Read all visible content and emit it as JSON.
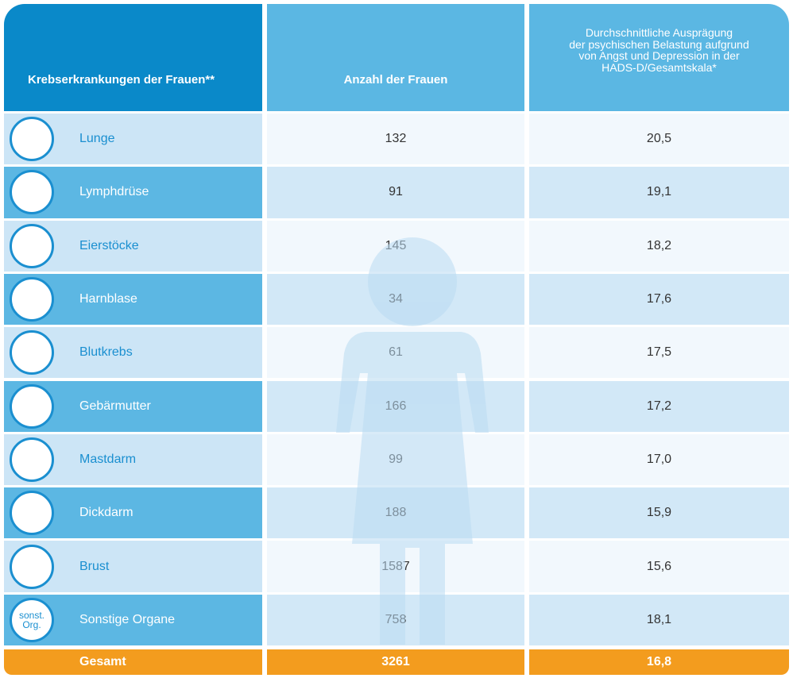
{
  "header": {
    "col1": "Krebserkrankungen der Frauen**",
    "col2": "Anzahl der Frauen",
    "col3": [
      "Durchschnittliche Ausprägung",
      "der psychischen Belastung aufgrund",
      "von Angst und Depression in der",
      "HADS-D/Gesamtskala*"
    ]
  },
  "rows": [
    {
      "label": "Lunge",
      "count": 132,
      "score": "20,5"
    },
    {
      "label": "Lymphdrüse",
      "count": 91,
      "score": "19,1"
    },
    {
      "label": "Eierstöcke",
      "count": 145,
      "score": "18,2"
    },
    {
      "label": "Harnblase",
      "count": 34,
      "score": "17,6"
    },
    {
      "label": "Blutkrebs",
      "count": 61,
      "score": "17,5"
    },
    {
      "label": "Gebärmutter",
      "count": 166,
      "score": "17,2"
    },
    {
      "label": "Mastdarm",
      "count": 99,
      "score": "17,0"
    },
    {
      "label": "Dickdarm",
      "count": 188,
      "score": "15,9"
    },
    {
      "label": "Brust",
      "count": 1587,
      "score": "15,6"
    },
    {
      "label": "Sonstige Organe",
      "count": 758,
      "score": "18,1",
      "icon_text": [
        "sonst.",
        "Org."
      ]
    }
  ],
  "total": {
    "label": "Gesamt",
    "count": 3261,
    "score": "16,8"
  }
}
